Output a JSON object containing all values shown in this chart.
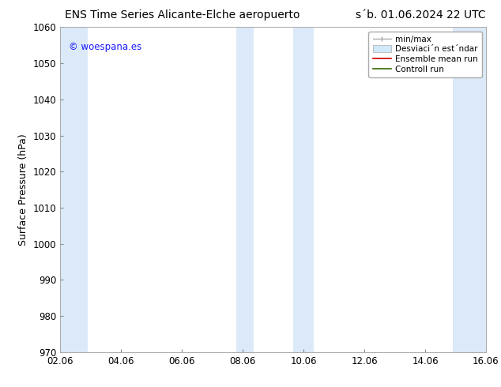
{
  "title_left": "ENS Time Series Alicante-Elche aeropuerto",
  "title_right": "s´b. 01.06.2024 22 UTC",
  "ylabel": "Surface Pressure (hPa)",
  "ylim": [
    970,
    1060
  ],
  "yticks": [
    970,
    980,
    990,
    1000,
    1010,
    1020,
    1030,
    1040,
    1050,
    1060
  ],
  "xlim_start": 0,
  "xlim_end": 14,
  "xtick_labels": [
    "02.06",
    "04.06",
    "06.06",
    "08.06",
    "10.06",
    "12.06",
    "14.06",
    "16.06"
  ],
  "xtick_positions": [
    0,
    2,
    4,
    6,
    8,
    10,
    12,
    14
  ],
  "bg_color": "#ffffff",
  "plot_bg_color": "#ffffff",
  "band_color": "#dbe9f8",
  "bands": [
    {
      "x_start": 0.0,
      "x_end": 0.9
    },
    {
      "x_start": 5.8,
      "x_end": 6.35
    },
    {
      "x_start": 7.65,
      "x_end": 8.35
    },
    {
      "x_start": 12.9,
      "x_end": 13.5
    },
    {
      "x_start": 13.5,
      "x_end": 14.0
    }
  ],
  "watermark_text": "© woespana.es",
  "watermark_color": "#1a1aff",
  "legend_min_max_color": "#aaaaaa",
  "legend_std_color": "#d0e8f8",
  "legend_std_edge_color": "#aaaaaa",
  "legend_ensemble_color": "#cc0000",
  "legend_control_color": "#336600",
  "title_fontsize": 10,
  "tick_fontsize": 8.5,
  "ylabel_fontsize": 9,
  "watermark_fontsize": 8.5,
  "legend_fontsize": 7.5
}
